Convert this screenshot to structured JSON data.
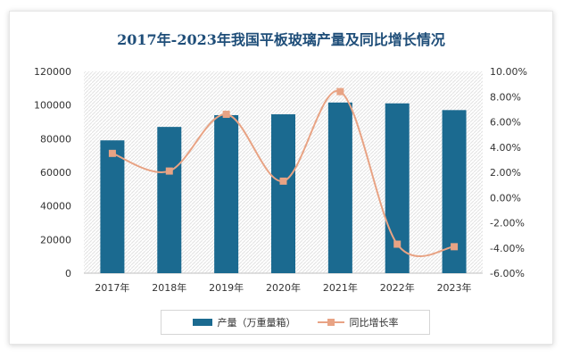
{
  "chart_data": {
    "type": "bar",
    "title": "2017年-2023年我国平板玻璃产量及同比增长情况",
    "categories": [
      "2017年",
      "2018年",
      "2019年",
      "2020年",
      "2021年",
      "2022年",
      "2023年"
    ],
    "series": [
      {
        "name": "产量（万重量箱）",
        "type": "bar",
        "axis": "left",
        "color": "#1b6a90",
        "values": [
          79000,
          87000,
          94000,
          94500,
          101500,
          101000,
          97000
        ]
      },
      {
        "name": "同比增长率",
        "type": "line",
        "axis": "right",
        "color": "#e8a384",
        "values": [
          3.5,
          2.1,
          6.6,
          1.3,
          8.4,
          -3.7,
          -3.9
        ]
      }
    ],
    "y_left": {
      "min": 0,
      "max": 120000,
      "ticks": [
        "0",
        "20000",
        "40000",
        "60000",
        "80000",
        "100000",
        "120000"
      ]
    },
    "y_right": {
      "min": -6,
      "max": 10,
      "ticks": [
        "-6.00%",
        "-4.00%",
        "-2.00%",
        "0.00%",
        "2.00%",
        "4.00%",
        "6.00%",
        "8.00%",
        "10.00%"
      ]
    },
    "legend_position": "bottom",
    "grid": false
  }
}
